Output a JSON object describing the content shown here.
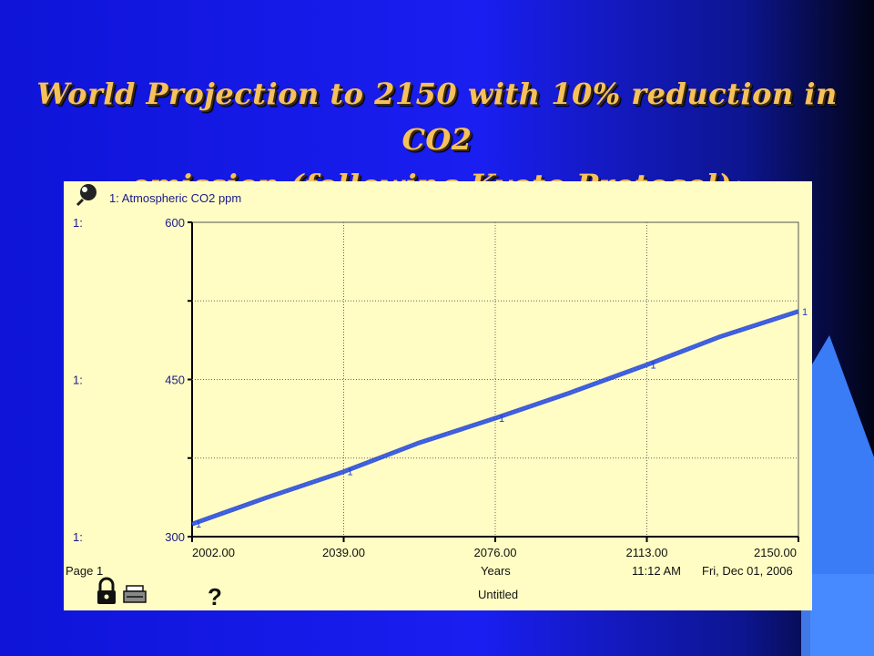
{
  "slide": {
    "title_line1": "World Projection to 2150 with 10% reduction in CO2",
    "title_line2": "emission (following Kyoto Protocol):"
  },
  "chart_data": {
    "type": "line",
    "title": "",
    "legend": "1: Atmospheric CO2 ppm",
    "series": [
      {
        "name": "1: Atmospheric CO2 ppm",
        "marker": "1",
        "color": "#1f3fd6",
        "x": [
          2002,
          2020,
          2039,
          2057,
          2076,
          2094,
          2113,
          2131,
          2150
        ],
        "y": [
          312,
          337,
          362,
          389,
          413,
          437,
          464,
          491,
          515
        ]
      }
    ],
    "xlabel": "Years",
    "xticks": [
      "2002.00",
      "2039.00",
      "2076.00",
      "2113.00",
      "2150.00"
    ],
    "xlim": [
      2002,
      2150
    ],
    "yticks": [
      "300",
      "450",
      "600"
    ],
    "ytick_prefix": "1:",
    "ylim": [
      300,
      600
    ],
    "grid": true
  },
  "footer": {
    "page": "Page 1",
    "xlabel": "Years",
    "time": "11:12 AM",
    "date": "Fri, Dec 01, 2006",
    "model_name": "Untitled"
  },
  "icons": {
    "graph": "magnifier-icon",
    "lock": "lock-icon",
    "print": "printer-icon",
    "help": "help-icon"
  }
}
